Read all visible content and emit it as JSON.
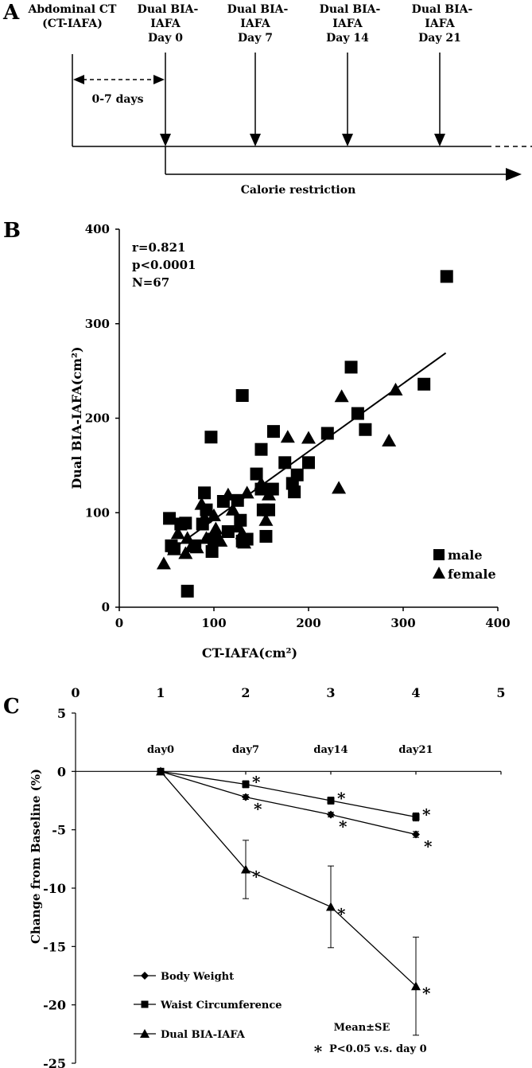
{
  "panels": {
    "a_label": "A",
    "b_label": "B",
    "c_label": "C"
  },
  "panel_a": {
    "events": [
      {
        "line1": "Abdominal CT",
        "line2": "(CT-IAFA)",
        "line3": ""
      },
      {
        "line1": "Dual BIA-",
        "line2": "IAFA",
        "line3": "Day 0"
      },
      {
        "line1": "Dual BIA-",
        "line2": "IAFA",
        "line3": "Day 7"
      },
      {
        "line1": "Dual BIA-",
        "line2": "IAFA",
        "line3": "Day 14"
      },
      {
        "line1": "Dual BIA-",
        "line2": "IAFA",
        "line3": "Day 21"
      }
    ],
    "interval_label": "0-7 days",
    "restriction_label": "Calorie restriction"
  },
  "chart_data": [
    {
      "type": "scatter",
      "xlabel": "CT-IAFA(cm²)",
      "ylabel": "Dual BIA-IAFA(cm²)",
      "xlim": [
        0,
        400
      ],
      "ylim": [
        0,
        400
      ],
      "xticks": [
        "0",
        "100",
        "200",
        "300",
        "400"
      ],
      "yticks": [
        "0",
        "100",
        "200",
        "300",
        "400"
      ],
      "annotations": [
        "r=0.821",
        "p<0.0001",
        "N=67"
      ],
      "legend_position": "bottom-right",
      "series": [
        {
          "name": "male",
          "marker": "square",
          "points": [
            [
              53,
              94
            ],
            [
              55,
              65
            ],
            [
              58,
              62
            ],
            [
              65,
              88
            ],
            [
              70,
              89
            ],
            [
              72,
              17
            ],
            [
              80,
              65
            ],
            [
              88,
              88
            ],
            [
              90,
              121
            ],
            [
              92,
              103
            ],
            [
              97,
              180
            ],
            [
              98,
              59
            ],
            [
              100,
              72
            ],
            [
              110,
              112
            ],
            [
              115,
              80
            ],
            [
              125,
              113
            ],
            [
              128,
              92
            ],
            [
              130,
              224
            ],
            [
              130,
              70
            ],
            [
              135,
              72
            ],
            [
              145,
              141
            ],
            [
              150,
              125
            ],
            [
              150,
              167
            ],
            [
              152,
              103
            ],
            [
              155,
              75
            ],
            [
              158,
              103
            ],
            [
              162,
              125
            ],
            [
              163,
              186
            ],
            [
              175,
              153
            ],
            [
              183,
              131
            ],
            [
              185,
              122
            ],
            [
              188,
              140
            ],
            [
              200,
              153
            ],
            [
              220,
              184
            ],
            [
              245,
              254
            ],
            [
              252,
              205
            ],
            [
              260,
              188
            ],
            [
              322,
              236
            ],
            [
              346,
              350
            ]
          ]
        },
        {
          "name": "female",
          "marker": "triangle",
          "points": [
            [
              47,
              46
            ],
            [
              58,
              61
            ],
            [
              62,
              78
            ],
            [
              70,
              57
            ],
            [
              72,
              73
            ],
            [
              76,
              64
            ],
            [
              82,
              63
            ],
            [
              87,
              109
            ],
            [
              90,
              95
            ],
            [
              92,
              73
            ],
            [
              100,
              97
            ],
            [
              102,
              83
            ],
            [
              107,
              70
            ],
            [
              115,
              119
            ],
            [
              120,
              103
            ],
            [
              126,
              85
            ],
            [
              130,
              78
            ],
            [
              132,
              68
            ],
            [
              135,
              121
            ],
            [
              150,
              131
            ],
            [
              155,
              92
            ],
            [
              158,
              119
            ],
            [
              178,
              180
            ],
            [
              200,
              179
            ],
            [
              232,
              126
            ],
            [
              235,
              223
            ],
            [
              285,
              176
            ],
            [
              292,
              230
            ]
          ]
        }
      ],
      "regression": {
        "x": [
          60,
          345
        ],
        "y": [
          64,
          269
        ]
      }
    },
    {
      "type": "line",
      "x": [
        1,
        2,
        3,
        4
      ],
      "xlim": [
        0,
        5
      ],
      "ylim": [
        -25,
        5
      ],
      "xticks": [
        "0",
        "1",
        "2",
        "3",
        "4",
        "5"
      ],
      "yticks": [
        "5",
        "0",
        "-5",
        "-10",
        "-15",
        "-20",
        "-25"
      ],
      "categories": [
        "day0",
        "day7",
        "day14",
        "day21"
      ],
      "ylabel": "Change  from Baseline (%)",
      "series": [
        {
          "name": "Body Weight",
          "marker": "diamond",
          "values": [
            0,
            -2.2,
            -3.7,
            -5.4
          ],
          "err": [
            0,
            0.2,
            0.2,
            0.25
          ],
          "sig": [
            false,
            true,
            true,
            true
          ]
        },
        {
          "name": "Waist Circumference",
          "marker": "square",
          "values": [
            0,
            -1.1,
            -2.5,
            -3.9
          ],
          "err": [
            0,
            0.3,
            0.3,
            0.35
          ],
          "sig": [
            false,
            true,
            true,
            true
          ]
        },
        {
          "name": "Dual BIA-IAFA",
          "marker": "triangle",
          "values": [
            0,
            -8.4,
            -11.6,
            -18.4
          ],
          "err": [
            0,
            2.5,
            3.5,
            4.2
          ],
          "sig": [
            false,
            true,
            true,
            true
          ]
        }
      ],
      "sig_marker": "*",
      "note_stats": "Mean±SE",
      "note_sig": "P<0.05  v.s. day 0"
    }
  ]
}
